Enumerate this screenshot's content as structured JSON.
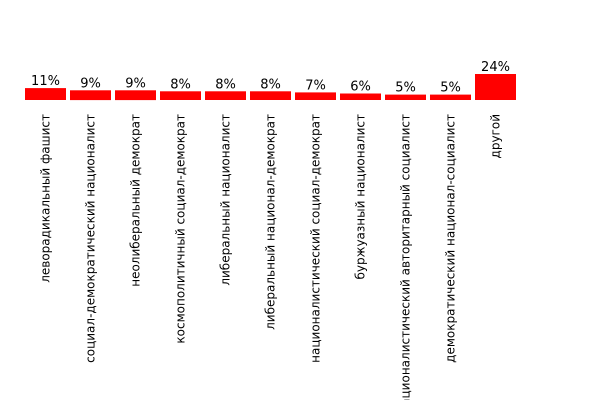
{
  "colors": {
    "bar": "#ff0000",
    "background": "#ffffff",
    "text": "#000000"
  },
  "chart_data": {
    "type": "bar",
    "categories": [
      "леворадикальный фашист",
      "социал-демократический националист",
      "неолиберальный демократ",
      "космополитичный социал-демократ",
      "либеральный националист",
      "либеральный национал-демократ",
      "националистический социал-демократ",
      "буржуазный националист",
      "националистический авторитарный социалист",
      "демократический национал-социалист",
      "другой"
    ],
    "values": [
      11,
      9,
      9,
      8,
      8,
      8,
      7,
      6,
      5,
      5,
      24
    ],
    "value_labels": [
      "11%",
      "9%",
      "9%",
      "8%",
      "8%",
      "8%",
      "7%",
      "6%",
      "5%",
      "5%",
      "24%"
    ],
    "ylim": [
      0,
      24
    ],
    "grid": false,
    "legend": "none"
  }
}
